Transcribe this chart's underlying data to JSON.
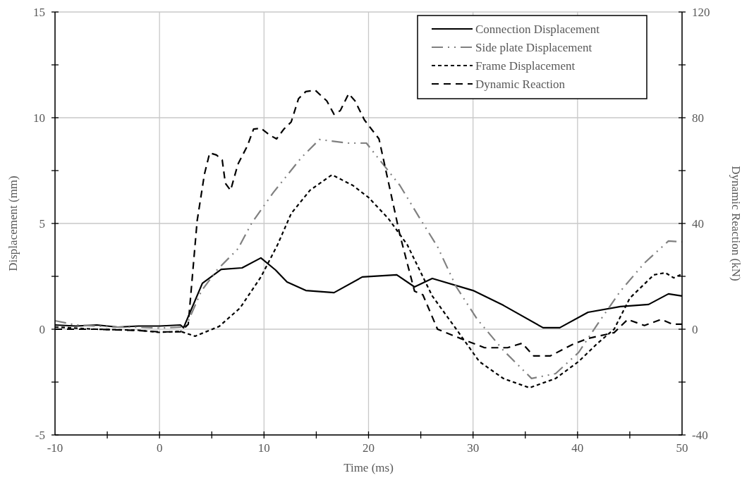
{
  "chart_data": {
    "type": "line",
    "xlabel": "Time (ms)",
    "ylabel": "Displacement (mm)",
    "y2label": "Dynamic Reaction (kN)",
    "xlim": [
      -10,
      50
    ],
    "xticks": [
      -10,
      {
        "value": -5,
        "label": null
      },
      0,
      {
        "value": 5,
        "label": null
      },
      10,
      {
        "value": 15,
        "label": null
      },
      20,
      {
        "value": 25,
        "label": null
      },
      30,
      {
        "value": 35,
        "label": null
      },
      40,
      {
        "value": 45,
        "label": null
      },
      50
    ],
    "ylim": [
      -5,
      15
    ],
    "yticks": [
      -5,
      {
        "value": -2.5,
        "label": null
      },
      0,
      {
        "value": 2.5,
        "label": null
      },
      5,
      {
        "value": 7.5,
        "label": null
      },
      10,
      {
        "value": 12.5,
        "label": null
      },
      15
    ],
    "y2lim": [
      -40,
      120
    ],
    "y2ticks": [
      -40,
      {
        "value": -20,
        "label": null
      },
      0,
      {
        "value": 20,
        "label": null
      },
      40,
      {
        "value": 60,
        "label": null
      },
      80,
      {
        "value": 100,
        "label": null
      },
      120
    ],
    "grid": true,
    "legend": "top right",
    "series": [
      {
        "name": "Connection Displacement",
        "color": "#000000",
        "line_style": "solid",
        "x": [
          -10,
          -8,
          -6,
          -4,
          -2,
          0,
          2,
          2.3,
          4.1,
          5.9,
          7.9,
          9.7,
          11.1,
          12.2,
          14,
          16.7,
          19.4,
          22.7,
          24.4,
          26.1,
          30,
          32.9,
          36.7,
          38.3,
          41,
          44.1,
          46.8,
          48.7,
          50
        ],
        "values": [
          0.2,
          0.15,
          0.2,
          0.1,
          0.15,
          0.15,
          0.2,
          0.07,
          2.17,
          2.83,
          2.9,
          3.37,
          2.8,
          2.23,
          1.83,
          1.73,
          2.47,
          2.57,
          2.0,
          2.4,
          1.83,
          1.13,
          0.07,
          0.07,
          0.8,
          1.07,
          1.17,
          1.67,
          1.57
        ]
      },
      {
        "name": "Side plate Displacement",
        "color": "#808080",
        "line_style": "dashdot",
        "x": [
          -10,
          -8,
          -6,
          -4,
          -2,
          0,
          2,
          2.5,
          4,
          5.5,
          7.5,
          8.8,
          10.9,
          13.6,
          15.3,
          18,
          19.8,
          20.7,
          23,
          24.8,
          26.6,
          28.4,
          30.4,
          32.9,
          35.6,
          37.9,
          40.1,
          41.9,
          44.1,
          46.4,
          48.7,
          50
        ],
        "values": [
          0.4,
          0.2,
          0.15,
          0.1,
          0.1,
          0.05,
          0.1,
          0.1,
          1.8,
          2.8,
          3.8,
          5.0,
          6.47,
          8.13,
          8.97,
          8.8,
          8.8,
          8.23,
          6.8,
          5.33,
          3.9,
          2.0,
          0.47,
          -1.0,
          -2.33,
          -2.1,
          -1.1,
          0.23,
          1.8,
          3.13,
          4.17,
          4.13
        ]
      },
      {
        "name": "Frame Displacement",
        "color": "#000000",
        "line_style": "dotted",
        "x": [
          -10,
          -6,
          -2,
          0,
          2,
          3.4,
          5.7,
          7.7,
          9.7,
          11.3,
          12.6,
          14.4,
          16.5,
          18.5,
          20,
          21.9,
          23.7,
          26.1,
          28.4,
          30.6,
          32.9,
          35.4,
          37.9,
          40.1,
          41.9,
          43.5,
          45,
          47.3,
          48.4,
          49.2,
          50
        ],
        "values": [
          0.1,
          0.0,
          -0.05,
          -0.15,
          -0.1,
          -0.33,
          0.13,
          1.0,
          2.47,
          4.0,
          5.47,
          6.57,
          7.3,
          6.8,
          6.23,
          5.23,
          4.0,
          1.57,
          0.0,
          -1.53,
          -2.33,
          -2.77,
          -2.33,
          -1.53,
          -0.67,
          0.0,
          1.47,
          2.57,
          2.67,
          2.43,
          2.6
        ]
      },
      {
        "name": "Dynamic Reaction",
        "color": "#000000",
        "line_style": "dashed",
        "axis": "y2",
        "x": [
          -10,
          -6,
          -2,
          0,
          2,
          2.75,
          3.6,
          4.3,
          4.8,
          5.45,
          6.0,
          6.3,
          6.8,
          7.5,
          8.4,
          9.0,
          9.7,
          10.6,
          11.2,
          11.9,
          12.6,
          13.3,
          14,
          14.9,
          16,
          16.7,
          17.3,
          18.1,
          18.7,
          19.6,
          21,
          23,
          24.4,
          25.2,
          26.6,
          28.8,
          31.1,
          33.3,
          34.7,
          35.8,
          37.4,
          39.6,
          41,
          43.5,
          44.8,
          46.4,
          48,
          49.1,
          50
        ],
        "values": [
          0,
          0,
          -0.5,
          -1,
          -1,
          1.9,
          41,
          58.7,
          66.7,
          65.9,
          64,
          55.2,
          52.5,
          62.4,
          69.3,
          75.7,
          76,
          73.3,
          72,
          75.7,
          78.4,
          87.2,
          89.9,
          90.4,
          86.4,
          81.3,
          82.7,
          89.1,
          86.4,
          79.2,
          72,
          35.7,
          14.4,
          13,
          0,
          -3.5,
          -7.0,
          -7.0,
          -5.3,
          -10.1,
          -10.1,
          -5.6,
          -3.5,
          -1.3,
          3.7,
          1.4,
          3.7,
          1.9,
          1.9
        ]
      }
    ]
  }
}
